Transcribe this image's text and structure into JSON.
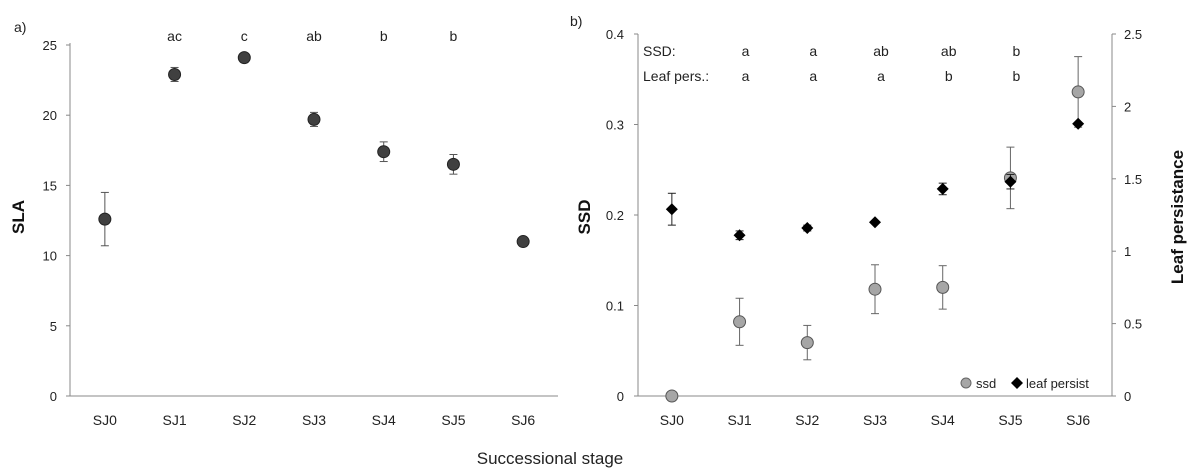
{
  "shared_xlabel": "Successional stage",
  "chart_data": [
    {
      "panel_label": "a)",
      "type": "scatter",
      "categories": [
        "SJ0",
        "SJ1",
        "SJ2",
        "SJ3",
        "SJ4",
        "SJ5",
        "SJ6"
      ],
      "ylabel": "SLA",
      "ylim": [
        0,
        25
      ],
      "yticks": [
        0,
        5,
        10,
        15,
        20,
        25
      ],
      "grid": false,
      "series": [
        {
          "values": [
            12.6,
            22.9,
            24.1,
            19.7,
            17.4,
            16.5,
            11.0
          ],
          "errors": [
            1.9,
            0.5,
            0.0,
            0.5,
            0.7,
            0.7,
            0.0
          ],
          "color": "#404040",
          "marker": "circle"
        }
      ],
      "group_letters": [
        "",
        "ac",
        "c",
        "ab",
        "b",
        "b",
        ""
      ]
    },
    {
      "panel_label": "b)",
      "type": "scatter",
      "categories": [
        "SJ0",
        "SJ1",
        "SJ2",
        "SJ3",
        "SJ4",
        "SJ5",
        "SJ6"
      ],
      "ylabel": "SSD",
      "ylim": [
        0,
        0.4
      ],
      "yticks": [
        0,
        0.1,
        0.2,
        0.3,
        0.4
      ],
      "y2label": "Leaf persistance",
      "y2lim": [
        0,
        2.5
      ],
      "y2ticks": [
        0,
        0.5,
        1,
        1.5,
        2,
        2.5
      ],
      "grid": false,
      "legend_position": "bottom-right",
      "series": [
        {
          "name": "ssd",
          "axis": "left",
          "marker": "circle",
          "color": "#a6a6a6",
          "values": [
            0.0,
            0.082,
            0.059,
            0.118,
            0.12,
            0.241,
            0.336
          ],
          "errors": [
            0.0,
            0.026,
            0.019,
            0.027,
            0.024,
            0.034,
            0.039
          ]
        },
        {
          "name": "leaf persist",
          "axis": "right",
          "marker": "diamond",
          "color": "#000000",
          "values": [
            1.29,
            1.11,
            1.16,
            1.2,
            1.43,
            1.48,
            1.88
          ],
          "errors": [
            0.11,
            0.03,
            0.02,
            0.0,
            0.04,
            0.05,
            0.0
          ]
        }
      ],
      "letter_rows": [
        {
          "label": "SSD:",
          "letters": [
            "",
            "a",
            "a",
            "ab",
            "ab",
            "b",
            ""
          ]
        },
        {
          "label": "Leaf pers.:",
          "letters": [
            "",
            "a",
            "a",
            "a",
            "b",
            "b",
            ""
          ]
        }
      ]
    }
  ]
}
